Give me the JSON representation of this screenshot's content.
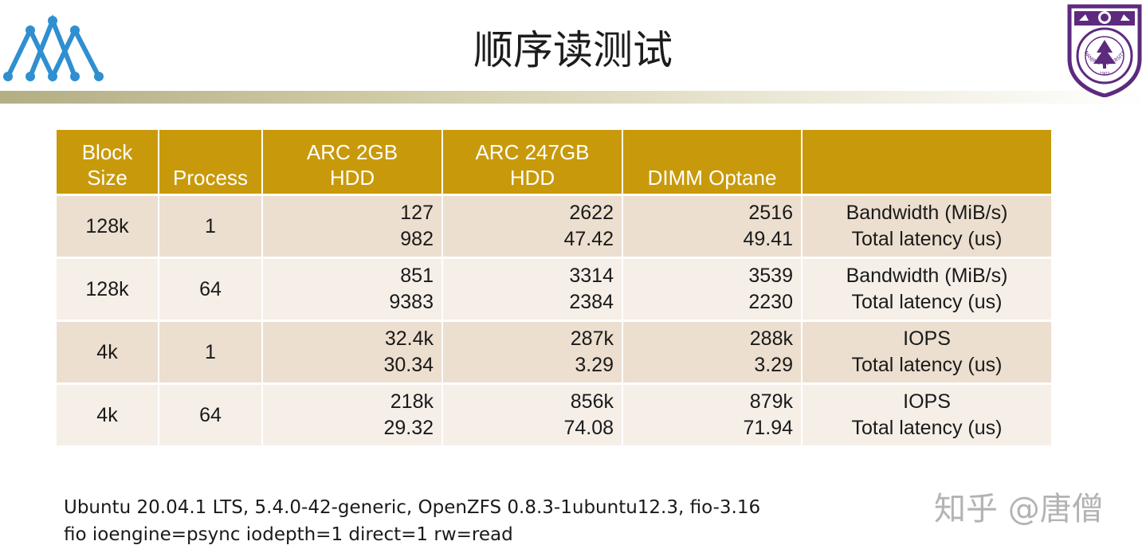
{
  "slide": {
    "title": "顺序读测试"
  },
  "logos": {
    "left": {
      "icon": "mountain-peaks-logo-icon",
      "color": "#2f8fd0"
    },
    "right": {
      "icon": "university-seal-icon",
      "color": "#5d2a7e",
      "seal_text": "NANJING UNIVERSITY",
      "seal_year": "1902"
    }
  },
  "table": {
    "headers": {
      "block_size": "Block Size",
      "process": "Process",
      "arc2": "ARC 2GB HDD",
      "arc247": "ARC 247GB HDD",
      "dimm": "DIMM Optane",
      "metric": ""
    },
    "rows": [
      {
        "block_size": "128k",
        "process": "1",
        "arc2": [
          "127",
          "982"
        ],
        "arc247": [
          "2622",
          "47.42"
        ],
        "dimm": [
          "2516",
          "49.41"
        ],
        "metric": [
          "Bandwidth (MiB/s)",
          "Total latency (us)"
        ]
      },
      {
        "block_size": "128k",
        "process": "64",
        "arc2": [
          "851",
          "9383"
        ],
        "arc247": [
          "3314",
          "2384"
        ],
        "dimm": [
          "3539",
          "2230"
        ],
        "metric": [
          "Bandwidth (MiB/s)",
          "Total latency (us)"
        ]
      },
      {
        "block_size": "4k",
        "process": "1",
        "arc2": [
          "32.4k",
          "30.34"
        ],
        "arc247": [
          "287k",
          "3.29"
        ],
        "dimm": [
          "288k",
          "3.29"
        ],
        "metric": [
          "IOPS",
          "Total latency (us)"
        ]
      },
      {
        "block_size": "4k",
        "process": "64",
        "arc2": [
          "218k",
          "29.32"
        ],
        "arc247": [
          "856k",
          "74.08"
        ],
        "dimm": [
          "879k",
          "71.94"
        ],
        "metric": [
          "IOPS",
          "Total latency (us)"
        ]
      }
    ]
  },
  "footer": {
    "line1": "Ubuntu 20.04.1 LTS, 5.4.0-42-generic, OpenZFS 0.8.3-1ubuntu12.3, fio-3.16",
    "line2": "fio ioengine=psync iodepth=1 direct=1 rw=read"
  },
  "watermark": {
    "text": "知乎 @唐僧"
  },
  "colors": {
    "header_bg": "#c89a0b",
    "row_odd": "#ecdfcf",
    "row_even": "#f5efe8",
    "title_bar": "#b3ae84"
  }
}
